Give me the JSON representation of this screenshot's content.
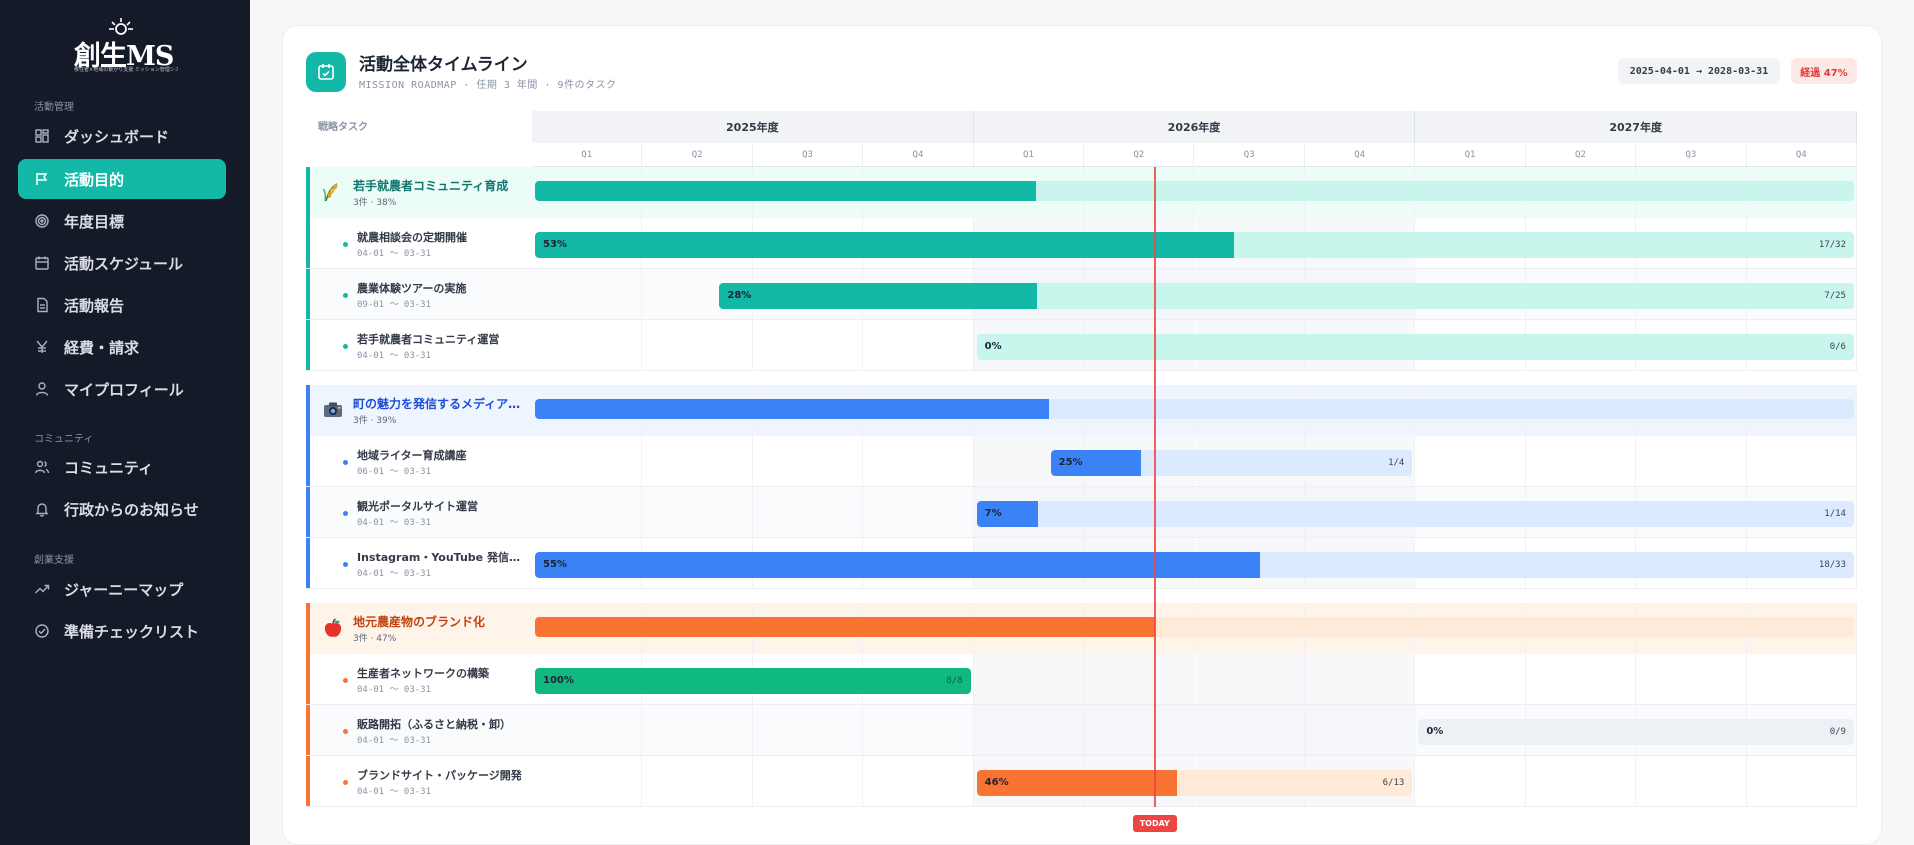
{
  "sidebar": {
    "logo": {
      "main": "創生MS",
      "sub": "移住者×地域の繋がり支援 ミッション管理システム"
    },
    "sections": [
      {
        "label": "活動管理",
        "items": [
          {
            "label": "ダッシュボード",
            "icon": "dashboard-icon"
          },
          {
            "label": "活動目的",
            "icon": "flag-icon",
            "active": true
          },
          {
            "label": "年度目標",
            "icon": "target-icon"
          },
          {
            "label": "活動スケジュール",
            "icon": "calendar-icon"
          },
          {
            "label": "活動報告",
            "icon": "document-icon"
          },
          {
            "label": "経費・請求",
            "icon": "yen-icon"
          },
          {
            "label": "マイプロフィール",
            "icon": "user-icon"
          }
        ]
      },
      {
        "label": "コミュニティ",
        "items": [
          {
            "label": "コミュニティ",
            "icon": "users-icon"
          },
          {
            "label": "行政からのお知らせ",
            "icon": "bell-icon"
          }
        ]
      },
      {
        "label": "創業支援",
        "items": [
          {
            "label": "ジャーニーマップ",
            "icon": "trend-icon"
          },
          {
            "label": "準備チェックリスト",
            "icon": "check-circle-icon"
          }
        ]
      }
    ]
  },
  "header": {
    "title": "活動全体タイムライン",
    "subtitle": "MISSION ROADMAP · 任期 3 年間 · 9件のタスク",
    "range": "2025-04-01 → 2028-03-31",
    "elapsed": "経過 47%",
    "icon": "calendar-check-icon"
  },
  "timeline": {
    "task_column_label": "戦略タスク",
    "years": [
      "2025年度",
      "2026年度",
      "2027年度"
    ],
    "quarters": [
      "Q1",
      "Q2",
      "Q3",
      "Q4"
    ],
    "today_label": "TODAY",
    "today_fraction": 0.47,
    "groups": [
      {
        "name": "若手就農者コミュニティ育成",
        "meta": "3件 · 38%",
        "emoji": "rice-icon",
        "color": "#14b8a6",
        "track_color": "#c8f5ec",
        "header_bg": "#ecfdf8",
        "name_color": "#0f766e",
        "progress_fraction": 0.38,
        "tasks": [
          {
            "name": "就農相談会の定期開催",
            "dates": "04-01 〜 03-31",
            "pct_label": "53%",
            "count": "17/32",
            "progress": 0.53,
            "start_q": 0,
            "end_q": 12
          },
          {
            "name": "農業体験ツアーの実施",
            "dates": "09-01 〜 03-31",
            "pct_label": "28%",
            "count": "7/25",
            "progress": 0.28,
            "start_q": 1.67,
            "end_q": 12
          },
          {
            "name": "若手就農者コミュニティ運営",
            "dates": "04-01 〜 03-31",
            "pct_label": "0%",
            "count": "0/6",
            "progress": 0,
            "start_q": 4,
            "end_q": 12
          }
        ]
      },
      {
        "name": "町の魅力を発信するメディア運営",
        "meta": "3件 · 39%",
        "emoji": "camera-icon",
        "color": "#3b82f6",
        "track_color": "#dbeafe",
        "header_bg": "#eff5ff",
        "name_color": "#1d4ed8",
        "progress_fraction": 0.39,
        "tasks": [
          {
            "name": "地域ライター育成講座",
            "dates": "06-01 〜 03-31",
            "pct_label": "25%",
            "count": "1/4",
            "progress": 0.25,
            "start_q": 4.67,
            "end_q": 8
          },
          {
            "name": "観光ポータルサイト運営",
            "dates": "04-01 〜 03-31",
            "pct_label": "7%",
            "count": "1/14",
            "progress": 0.07,
            "start_q": 4,
            "end_q": 12
          },
          {
            "name": "Instagram・YouTube 発信立ち上げ",
            "dates": "04-01 〜 03-31",
            "pct_label": "55%",
            "count": "18/33",
            "progress": 0.55,
            "start_q": 0,
            "end_q": 12
          }
        ]
      },
      {
        "name": "地元農産物のブランド化",
        "meta": "3件 · 47%",
        "emoji": "apple-icon",
        "color": "#f97332",
        "track_color": "#feead6",
        "header_bg": "#fff4ea",
        "name_color": "#c2410c",
        "progress_fraction": 0.47,
        "tasks": [
          {
            "name": "生産者ネットワークの構築",
            "dates": "04-01 〜 03-31",
            "pct_label": "100%",
            "count": "8/8",
            "progress": 1.0,
            "start_q": 0,
            "end_q": 4,
            "done": true
          },
          {
            "name": "販路開拓（ふるさと納税・卸）",
            "dates": "04-01 〜 03-31",
            "pct_label": "0%",
            "count": "0/9",
            "progress": 0,
            "start_q": 8,
            "end_q": 12,
            "neutral": true
          },
          {
            "name": "ブランドサイト・パッケージ開発",
            "dates": "04-01 〜 03-31",
            "pct_label": "46%",
            "count": "6/13",
            "progress": 0.46,
            "start_q": 4,
            "end_q": 8
          }
        ]
      }
    ]
  }
}
